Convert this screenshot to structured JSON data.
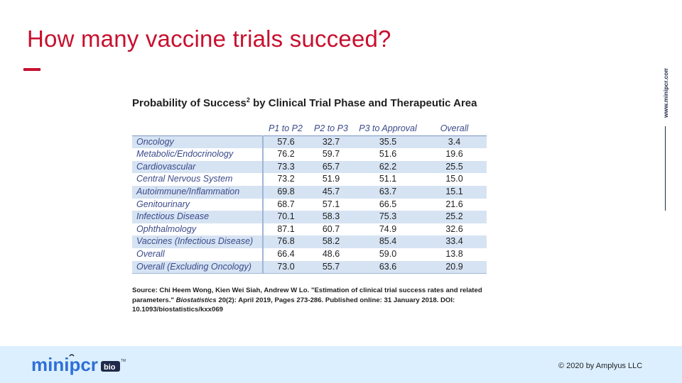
{
  "slide": {
    "title": "How many vaccine trials succeed?",
    "side_website": "www.minipcr.com",
    "copyright": "© 2020 by Amplyus LLC",
    "logo_text": "minipcr",
    "logo_badge": "bio",
    "colors": {
      "accent": "#c8102e",
      "logo_blue": "#2f6fd6",
      "logo_navy": "#1f2a4a",
      "footer_bg": "#dcefff",
      "row_band": "#d6e3f3"
    }
  },
  "table": {
    "heading": "Probability of Success",
    "heading_sup": "2",
    "heading_rest": " by Clinical Trial Phase and Therapeutic Area",
    "columns": [
      "P1 to P2",
      "P2 to P3",
      "P3 to Approval",
      "Overall"
    ],
    "rows": [
      {
        "area": "Oncology",
        "p1p2": "57.6",
        "p2p3": "32.7",
        "p3app": "35.5",
        "overall": "3.4"
      },
      {
        "area": "Metabolic/Endocrinology",
        "p1p2": "76.2",
        "p2p3": "59.7",
        "p3app": "51.6",
        "overall": "19.6"
      },
      {
        "area": "Cardiovascular",
        "p1p2": "73.3",
        "p2p3": "65.7",
        "p3app": "62.2",
        "overall": "25.5"
      },
      {
        "area": "Central Nervous System",
        "p1p2": "73.2",
        "p2p3": "51.9",
        "p3app": "51.1",
        "overall": "15.0"
      },
      {
        "area": "Autoimmune/Inflammation",
        "p1p2": "69.8",
        "p2p3": "45.7",
        "p3app": "63.7",
        "overall": "15.1"
      },
      {
        "area": "Genitourinary",
        "p1p2": "68.7",
        "p2p3": "57.1",
        "p3app": "66.5",
        "overall": "21.6"
      },
      {
        "area": "Infectious Disease",
        "p1p2": "70.1",
        "p2p3": "58.3",
        "p3app": "75.3",
        "overall": "25.2"
      },
      {
        "area": "Ophthalmology",
        "p1p2": "87.1",
        "p2p3": "60.7",
        "p3app": "74.9",
        "overall": "32.6"
      },
      {
        "area": "Vaccines (Infectious Disease)",
        "p1p2": "76.8",
        "p2p3": "58.2",
        "p3app": "85.4",
        "overall": "33.4"
      },
      {
        "area": "Overall",
        "p1p2": "66.4",
        "p2p3": "48.6",
        "p3app": "59.0",
        "overall": "13.8"
      },
      {
        "area": "Overall (Excluding Oncology)",
        "p1p2": "73.0",
        "p2p3": "55.7",
        "p3app": "63.6",
        "overall": "20.9"
      }
    ]
  },
  "source": {
    "prefix": "Source: Chi Heem Wong, Kien Wei Siah, Andrew W Lo. \"Estimation of clinical trial success rates and related parameters.\" ",
    "journal": "Biostatistics",
    "suffix": " 20(2): April 2019, Pages 273-286. Published online: 31 January 2018. DOI: 10.1093/biostatistics/kxx069"
  }
}
